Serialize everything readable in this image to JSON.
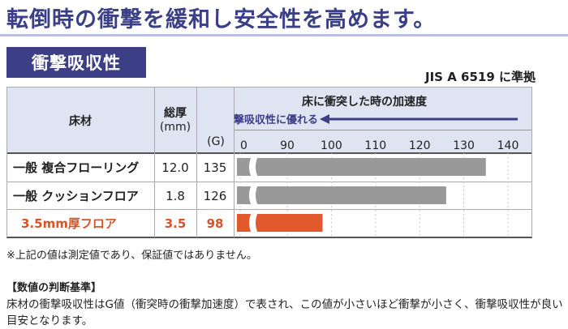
{
  "headline": "転倒時の衝撃を緩和し安全性を高めます。",
  "section_label": "衝撃吸収性",
  "standard": "JIS A 6519 に準拠",
  "table": {
    "col_material": "床材",
    "col_thickness_line1": "総厚",
    "col_thickness_line2": "(mm)",
    "col_accel": "床に衝突した時の加速度",
    "better_label": "衝撃吸収性に優れる",
    "unit_label": "(G)"
  },
  "chart_data": {
    "type": "bar",
    "orientation": "horizontal",
    "title": "床に衝突した時の加速度",
    "xlabel": "(G)",
    "axis_break": "0 → 90",
    "ticks": [
      "0",
      "90",
      "100",
      "110",
      "120",
      "130",
      "140"
    ],
    "xlim": [
      90,
      140
    ],
    "categories": [
      "一般 複合フローリング",
      "一般 クッションフロア",
      "3.5mm厚フロア"
    ],
    "thickness_mm": [
      "12.0",
      "1.8",
      "3.5"
    ],
    "values": [
      135,
      126,
      98
    ],
    "value_labels": [
      "135",
      "126",
      "98"
    ],
    "colors": [
      "#999999",
      "#999999",
      "#e0582b"
    ],
    "highlight_color": "#d9532a"
  },
  "note": "※上記の値は測定値であり、保証値ではありません。",
  "criteria_title": "【数値の判断基準】",
  "criteria_text": "床材の衝撃吸収性はG値（衝突時の衝撃加速度）で表され、この値が小さいほど衝撃が小さく、衝撃吸収性が良い目安となります。"
}
